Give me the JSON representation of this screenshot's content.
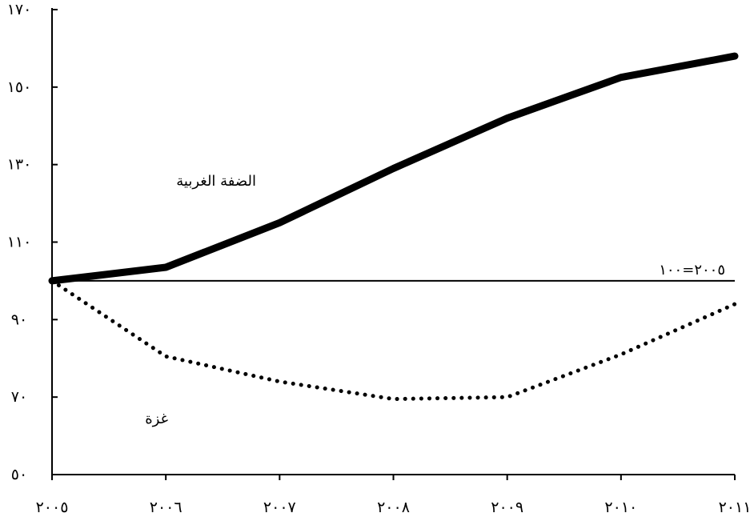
{
  "chart_data": {
    "type": "line",
    "title": "",
    "xlabel": "",
    "ylabel": "",
    "x": [
      2005,
      2006,
      2007,
      2008,
      2009,
      2010,
      2011
    ],
    "x_tick_labels": [
      "٢٠٠٥",
      "٢٠٠٦",
      "٢٠٠٧",
      "٢٠٠٨",
      "٢٠٠٩",
      "٢٠١٠",
      "٢٠١١"
    ],
    "ylim": [
      50,
      170
    ],
    "y_ticks": [
      50,
      70,
      90,
      110,
      130,
      150,
      170
    ],
    "y_tick_labels": [
      "٥٠",
      "٧٠",
      "٩٠",
      "١١٠",
      "١٣٠",
      "١٥٠",
      "١٧٠"
    ],
    "grid": false,
    "legend": "none",
    "series": [
      {
        "name": "الضفة الغربية",
        "style": "solid-thick",
        "color": "#000000",
        "values": [
          100,
          103.5,
          115,
          129,
          142,
          152.5,
          158
        ]
      },
      {
        "name": "غزة",
        "style": "dotted",
        "color": "#000000",
        "values": [
          100,
          80.5,
          74,
          69.5,
          70,
          81,
          94
        ]
      }
    ],
    "reference_line": {
      "label": "٢٠٠٥=١٠٠",
      "value": 100
    }
  }
}
